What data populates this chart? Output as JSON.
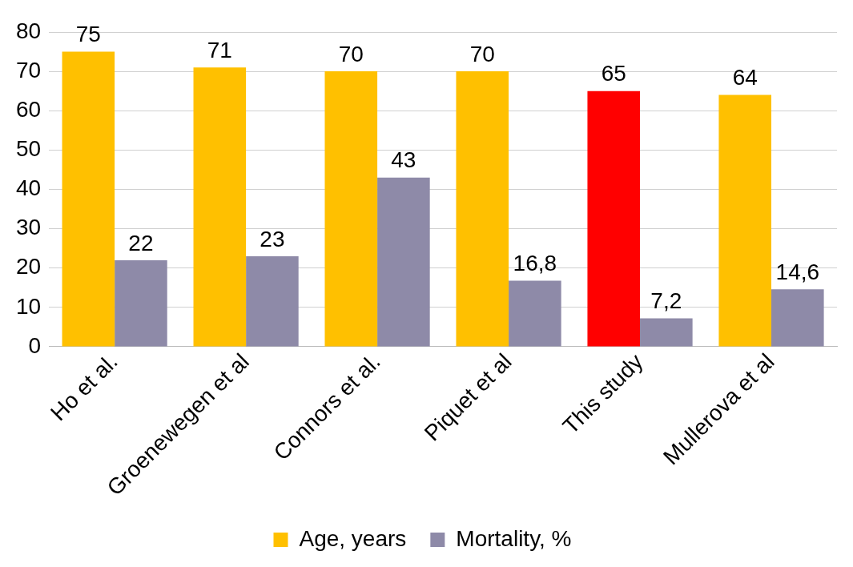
{
  "chart_data": {
    "type": "bar",
    "categories": [
      "Ho et al.",
      "Groenewegen et al",
      "Connors et al.",
      "Piquet et al",
      "This study",
      "Mullerova et al"
    ],
    "series": [
      {
        "name": "Age, years",
        "color": "#ffc000",
        "colors": [
          "#ffc000",
          "#ffc000",
          "#ffc000",
          "#ffc000",
          "#ff0000",
          "#ffc000"
        ],
        "values": [
          75,
          71,
          70,
          70,
          65,
          64
        ],
        "value_labels": [
          "75",
          "71",
          "70",
          "70",
          "65",
          "64"
        ]
      },
      {
        "name": "Mortality, %",
        "color": "#8e8aa8",
        "values": [
          22,
          23,
          43,
          16.8,
          7.2,
          14.6
        ],
        "value_labels": [
          "22",
          "23",
          "43",
          "16,8",
          "7,2",
          "14,6"
        ]
      }
    ],
    "ylim": [
      0,
      80
    ],
    "yticks": [
      0,
      10,
      20,
      30,
      40,
      50,
      60,
      70,
      80
    ],
    "grid": "y",
    "legend": "bottom"
  }
}
